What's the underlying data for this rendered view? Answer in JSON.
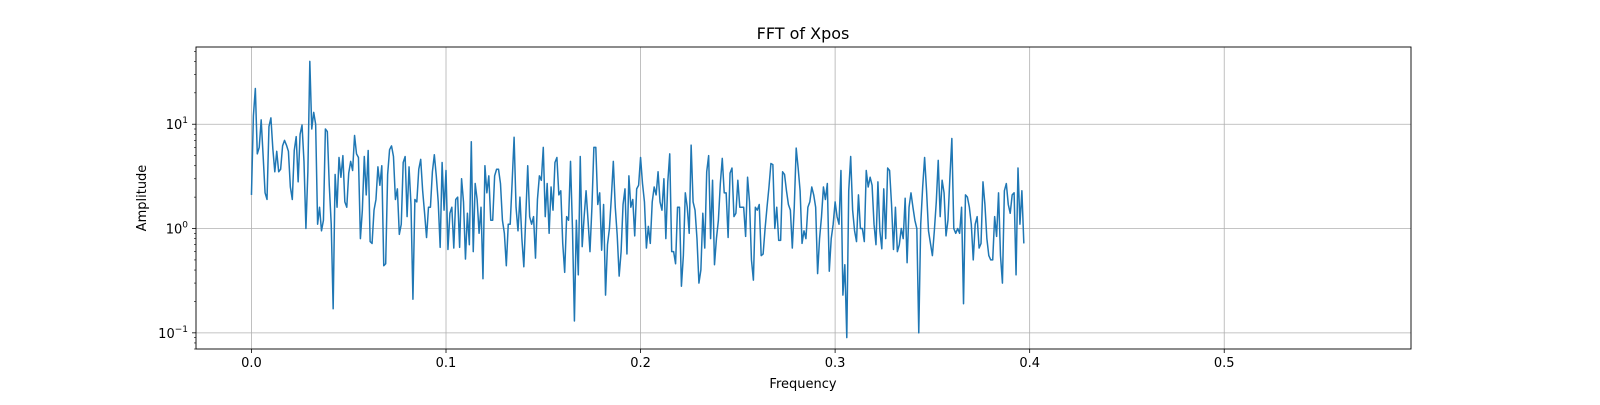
{
  "chart_data": {
    "type": "line",
    "title": "FFT of Xpos",
    "xlabel": "Frequency",
    "ylabel": "Amplitude",
    "yscale": "log",
    "grid": true,
    "xlim": [
      -0.0285,
      0.596
    ],
    "ylim": [
      0.07,
      55
    ],
    "x_ticks": [
      0.0,
      0.1,
      0.2,
      0.3,
      0.4,
      0.5
    ],
    "x_tick_labels": [
      "0.0",
      "0.1",
      "0.2",
      "0.3",
      "0.4",
      "0.5"
    ],
    "y_ticks": [
      {
        "value": 10,
        "base": "10",
        "exp": "1"
      },
      {
        "value": 1,
        "base": "10",
        "exp": "0"
      },
      {
        "value": 0.1,
        "base": "10",
        "exp": "−1"
      }
    ],
    "series": [
      {
        "color": "#1f77b4",
        "x_start": 0.0,
        "x_step": 0.001,
        "values": [
          2.1,
          12,
          22,
          5.2,
          6,
          11,
          5,
          2.2,
          1.9,
          9.5,
          11.5,
          5.8,
          3.5,
          5.5,
          3.5,
          3.7,
          6.2,
          7,
          6.3,
          5.5,
          2.5,
          1.9,
          5.6,
          7.6,
          2.8,
          8,
          9.8,
          4.4,
          1.0,
          3.5,
          40,
          9,
          13,
          10,
          1.1,
          1.6,
          0.95,
          1.2,
          9,
          8.5,
          2.6,
          1.1,
          0.17,
          3.3,
          1.6,
          4.8,
          3.1,
          5,
          1.8,
          1.6,
          3.4,
          4.4,
          3.6,
          7.8,
          5.2,
          4.8,
          0.8,
          1.5,
          4.9,
          2.1,
          5.6,
          0.75,
          0.72,
          1.5,
          1.9,
          3.9,
          2.6,
          4,
          0.44,
          0.46,
          3.3,
          5.7,
          6.2,
          4.9,
          1.9,
          2.4,
          0.88,
          1.1,
          4.3,
          4.9,
          1.3,
          3.9,
          1.7,
          0.21,
          1.9,
          1.8,
          3.7,
          4.6,
          2.3,
          1.4,
          0.82,
          1.6,
          1.6,
          3.5,
          5.1,
          3.2,
          1.8,
          0.66,
          4.3,
          1.5,
          3.6,
          0.63,
          1.4,
          1.6,
          0.65,
          1.9,
          2.0,
          0.66,
          3,
          1.8,
          0.51,
          1.4,
          0.7,
          6.8,
          0.6,
          2.7,
          1.9,
          0.9,
          1.6,
          0.33,
          4,
          2.2,
          3.2,
          1.2,
          1.2,
          3.2,
          3.7,
          3.7,
          2.7,
          1.2,
          0.9,
          0.44,
          1.1,
          1.1,
          2.8,
          7.5,
          1.6,
          0.95,
          2,
          0.8,
          0.43,
          1.3,
          4,
          1.3,
          1.1,
          1.3,
          0.52,
          1.9,
          3.2,
          2.9,
          6,
          1.3,
          2.7,
          0.9,
          2.5,
          1.5,
          4.3,
          4.8,
          2.1,
          2.3,
          0.72,
          0.38,
          1.3,
          1.2,
          4.4,
          1,
          0.13,
          1.2,
          0.36,
          4.9,
          0.67,
          1.3,
          2.3,
          1.2,
          0.6,
          1.6,
          6,
          6,
          1.7,
          2.2,
          0.62,
          1.7,
          0.23,
          0.7,
          1,
          2,
          4.4,
          1.6,
          0.86,
          0.35,
          0.6,
          1.7,
          2.4,
          0.57,
          3.2,
          1.6,
          1.9,
          0.85,
          2.4,
          2.6,
          4.8,
          2.7,
          1.8,
          0.65,
          1.05,
          0.72,
          1.8,
          2.5,
          2.1,
          3.5,
          1.8,
          1.5,
          3,
          0.8,
          2.8,
          5.2,
          0.6,
          0.6,
          0.46,
          1.6,
          1.6,
          0.28,
          0.55,
          2.2,
          1.6,
          0.9,
          6.3,
          1.8,
          1.5,
          0.8,
          0.3,
          0.4,
          1.4,
          0.65,
          3.5,
          5,
          0.8,
          2.9,
          0.45,
          0.8,
          1.2,
          2.7,
          4.7,
          2.2,
          2.2,
          0.82,
          3.4,
          3.8,
          1.3,
          1.4,
          2.9,
          1.6,
          1.6,
          1.6,
          0.84,
          3.1,
          1.8,
          0.5,
          0.32,
          1.6,
          1.5,
          1.7,
          0.55,
          0.57,
          1.0,
          1.6,
          2.5,
          4.2,
          4.1,
          1.0,
          1.6,
          0.77,
          0.77,
          3.5,
          3.3,
          2.3,
          1.7,
          1.5,
          0.65,
          1.6,
          5.9,
          3.8,
          2.3,
          0.72,
          0.95,
          0.8,
          1.6,
          1.8,
          2.5,
          2.1,
          1.6,
          0.37,
          0.8,
          1.3,
          2.5,
          1.9,
          2.7,
          0.39,
          0.8,
          1.1,
          1.8,
          1.3,
          1.1,
          3.6,
          0.23,
          0.45,
          0.09,
          2.3,
          4.9,
          1.5,
          0.95,
          0.75,
          2.1,
          1.0,
          1.0,
          0.75,
          3.6,
          2.5,
          3.1,
          2.6,
          1.1,
          0.7,
          2.8,
          0.95,
          0.64,
          2.4,
          0.8,
          3.8,
          3.6,
          1.7,
          0.63,
          1.6,
          0.6,
          0.7,
          1.0,
          0.8,
          1.95,
          0.47,
          1.6,
          2.2,
          1.6,
          1.2,
          1.0,
          0.1,
          1.1,
          2.5,
          4.8,
          2.3,
          0.95,
          0.72,
          0.55,
          0.95,
          1.8,
          4.5,
          1.3,
          2.9,
          2.2,
          0.85,
          1.2,
          3.1,
          7.3,
          1.0,
          0.9,
          1.0,
          0.9,
          1.6,
          0.19,
          2.1,
          2,
          1.6,
          1.1,
          0.5,
          1.1,
          1.3,
          0.65,
          0.72,
          2.8,
          1.7,
          0.8,
          0.55,
          0.5,
          0.5,
          1.3,
          0.84,
          2.2,
          0.55,
          0.3,
          2.3,
          2.7,
          1.7,
          1.4,
          2.1,
          2.2,
          0.36,
          3.8,
          1.1,
          2.3,
          0.72
        ]
      }
    ]
  }
}
